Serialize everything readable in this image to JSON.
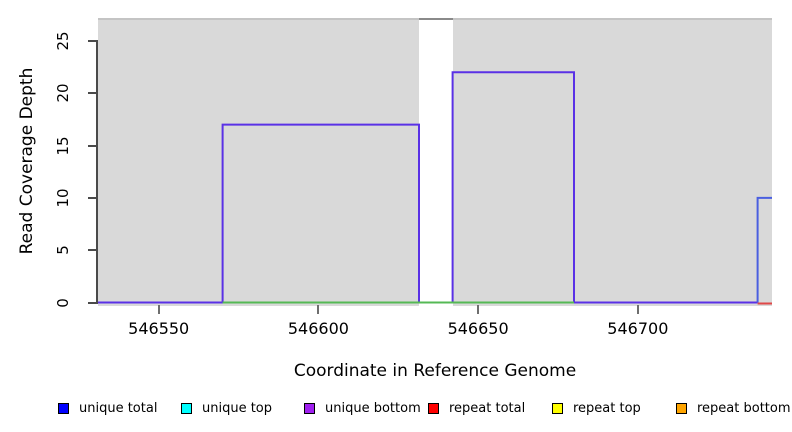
{
  "figure": {
    "background": "#ffffff",
    "plot_background": "#d9d9d9",
    "plot_top_edge_color": "#c4c4c4",
    "axis_color": "#4a4a4a",
    "text_color": "#000000"
  },
  "chart_data": {
    "type": "line",
    "subtype": "step-function read coverage plot",
    "title": "",
    "xlabel": "Coordinate in Reference Genome",
    "ylabel": "Read Coverage Depth",
    "xlim": [
      546531,
      546742
    ],
    "ylim": [
      0,
      27
    ],
    "x_ticks": [
      546550,
      546600,
      546650,
      546700
    ],
    "y_ticks": [
      0,
      5,
      10,
      15,
      20,
      25
    ],
    "grid": false,
    "legend_position": "bottom",
    "plotted_lines": [
      {
        "name": "unique-coverage-step",
        "color": "#5a31e6",
        "points": [
          [
            546531,
            0
          ],
          [
            546570,
            0
          ],
          [
            546570,
            17
          ],
          [
            546631.5,
            17
          ],
          [
            546631.5,
            0
          ],
          [
            546642,
            0
          ],
          [
            546642,
            22
          ],
          [
            546680,
            22
          ],
          [
            546680,
            0
          ],
          [
            546737.5,
            0
          ]
        ]
      },
      {
        "name": "baseline-zero-green",
        "color": "#55b955",
        "points": [
          [
            546570,
            0
          ],
          [
            546680,
            0
          ]
        ]
      },
      {
        "name": "right-edge-blue-step",
        "color": "#4a5fe0",
        "points": [
          [
            546737.5,
            0
          ],
          [
            546737.5,
            10
          ],
          [
            546742,
            10
          ]
        ]
      },
      {
        "name": "baseline-zero-red",
        "color": "#e04848",
        "points": [
          [
            546737.5,
            -0.1
          ],
          [
            546742,
            -0.1
          ]
        ]
      }
    ],
    "offscale_bar": {
      "x_start": 546631.5,
      "x_end": 546642,
      "fill": "#ffffff",
      "cap_color": "#8a8a8a",
      "note": "coverage bar exceeds y-axis maximum (drawn as white gap with gray cap)"
    }
  },
  "legend": {
    "items": [
      {
        "label": "unique total",
        "color": "#0000ff"
      },
      {
        "label": "unique top",
        "color": "#00ffff"
      },
      {
        "label": "unique bottom",
        "color": "#a020f0"
      },
      {
        "label": "repeat total",
        "color": "#ff0000"
      },
      {
        "label": "repeat top",
        "color": "#ffff00"
      },
      {
        "label": "repeat bottom",
        "color": "#ffa500"
      }
    ]
  }
}
